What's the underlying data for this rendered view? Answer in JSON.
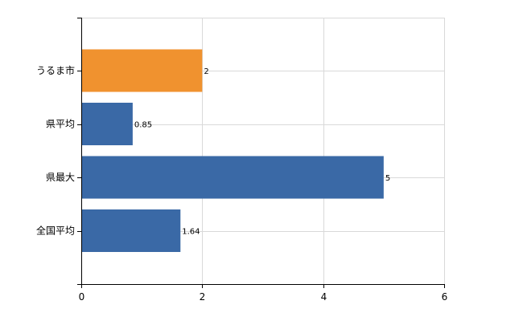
{
  "chart_data": {
    "type": "bar",
    "orientation": "horizontal",
    "categories": [
      "うるま市",
      "県平均",
      "県最大",
      "全国平均"
    ],
    "values": [
      2,
      0.85,
      5,
      1.64
    ],
    "value_labels": [
      "2",
      "0.85",
      "5",
      "1.64"
    ],
    "bar_colors": [
      "#f0922f",
      "#3a69a6",
      "#3a69a6",
      "#3a69a6"
    ],
    "title": "",
    "xlabel": "",
    "ylabel": "",
    "xlim": [
      0,
      6
    ],
    "x_ticks": [
      0,
      2,
      4,
      6
    ],
    "x_tick_labels": [
      "0",
      "2",
      "4",
      "6"
    ],
    "grid": true,
    "legend": "none"
  },
  "colors": {
    "highlight": "#f0922f",
    "default_bar": "#3a69a6",
    "grid": "#d9d9d9",
    "axis": "#000000"
  }
}
